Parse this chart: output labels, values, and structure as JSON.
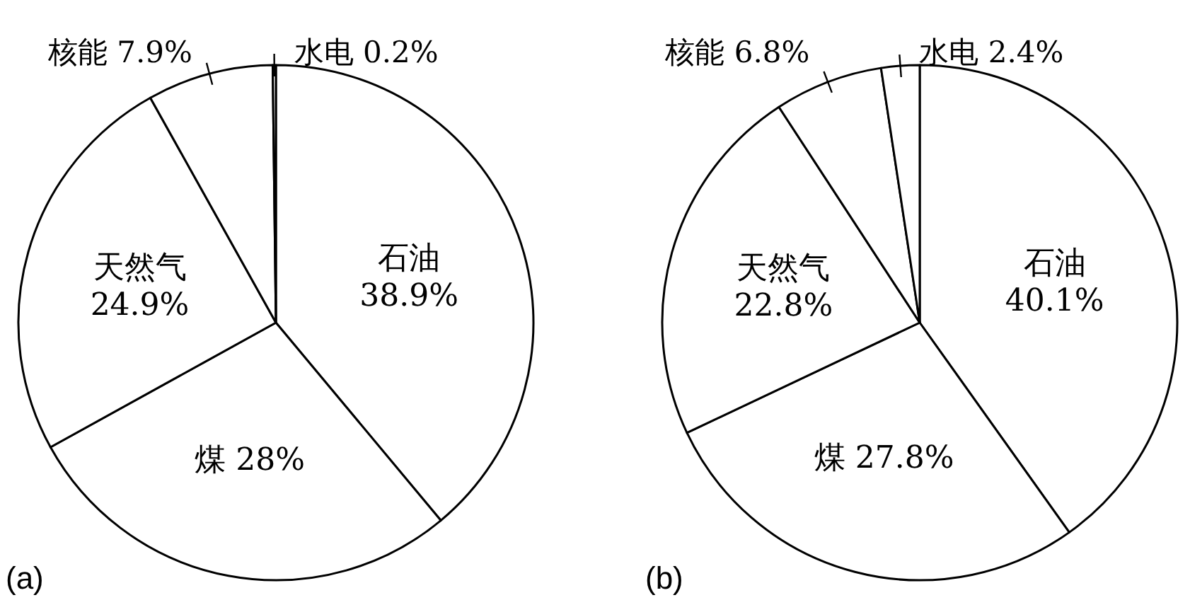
{
  "chart_data": [
    {
      "type": "pie",
      "title": "(a)",
      "categories": [
        "石油",
        "煤",
        "天然气",
        "核能",
        "水电"
      ],
      "values": [
        38.9,
        28,
        24.9,
        7.9,
        0.2
      ],
      "colors": [
        "#ffffff",
        "#ffffff",
        "#ffffff",
        "#ffffff",
        "#ffffff"
      ],
      "value_labels": [
        "38.9%",
        "28%",
        "24.9%",
        "7.9%",
        "0.2%"
      ]
    },
    {
      "type": "pie",
      "title": "(b)",
      "categories": [
        "石油",
        "煤",
        "天然气",
        "核能",
        "水电"
      ],
      "values": [
        40.1,
        27.8,
        22.8,
        6.8,
        2.4
      ],
      "colors": [
        "#ffffff",
        "#ffffff",
        "#ffffff",
        "#ffffff",
        "#ffffff"
      ],
      "value_labels": [
        "40.1%",
        "27.8%",
        "22.8%",
        "6.8%",
        "2.4%"
      ]
    }
  ]
}
